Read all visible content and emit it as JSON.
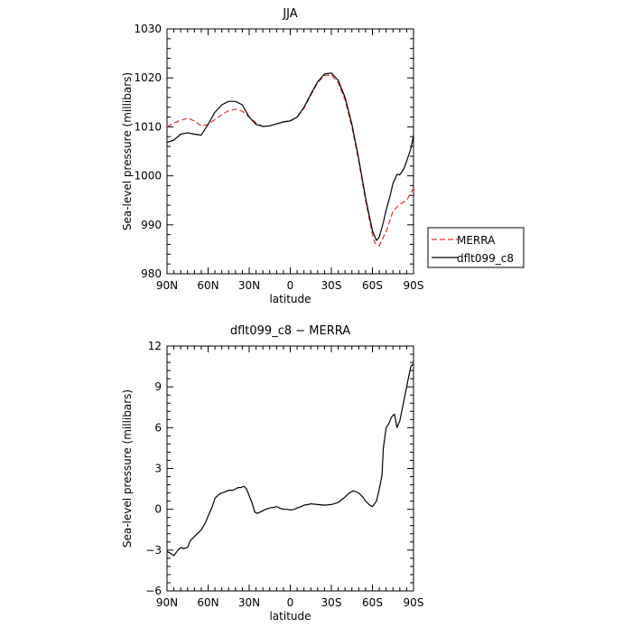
{
  "chart_data": [
    {
      "type": "line",
      "title": "JJA",
      "xlabel": "latitude",
      "ylabel": "Sea-level pressure (millibars)",
      "xticks": [
        "90N",
        "60N",
        "30N",
        "0",
        "30S",
        "60S",
        "90S"
      ],
      "xtick_values": [
        90,
        60,
        30,
        0,
        -30,
        -60,
        -90
      ],
      "xlim": [
        90,
        -90
      ],
      "ylim": [
        980,
        1030
      ],
      "yticks": [
        980,
        990,
        1000,
        1010,
        1020,
        1030
      ],
      "legend": "right",
      "series": [
        {
          "name": "MERRA",
          "color": "#e8322d",
          "dash": true,
          "x": [
            90,
            85,
            80,
            75,
            70,
            65,
            60,
            55,
            50,
            45,
            40,
            35,
            30,
            25,
            20,
            15,
            10,
            5,
            0,
            -5,
            -10,
            -15,
            -20,
            -25,
            -30,
            -35,
            -40,
            -45,
            -50,
            -55,
            -60,
            -62,
            -65,
            -68,
            -70,
            -75,
            -80,
            -85,
            -90
          ],
          "y": [
            1010,
            1010.8,
            1011.3,
            1011.8,
            1011.2,
            1010.2,
            1010.5,
            1011.5,
            1012.5,
            1013.3,
            1013.6,
            1013.2,
            1012,
            1010.8,
            1010.1,
            1010.2,
            1010.6,
            1011,
            1011.3,
            1012,
            1013.8,
            1016.5,
            1019,
            1020.5,
            1020.6,
            1019,
            1015.5,
            1010,
            1003,
            995,
            988,
            986.2,
            985.7,
            987.5,
            988.6,
            992.8,
            994.2,
            995,
            997.5
          ]
        },
        {
          "name": "dflt099_c8",
          "color": "#000000",
          "dash": false,
          "x": [
            90,
            85,
            80,
            75,
            70,
            65,
            60,
            55,
            50,
            45,
            40,
            35,
            30,
            25,
            20,
            15,
            10,
            5,
            0,
            -5,
            -10,
            -15,
            -20,
            -25,
            -30,
            -35,
            -40,
            -45,
            -50,
            -55,
            -60,
            -63,
            -65,
            -68,
            -70,
            -73,
            -75,
            -78,
            -80,
            -83,
            -85,
            -88,
            -90
          ],
          "y": [
            1006.8,
            1007.3,
            1008.5,
            1008.8,
            1008.5,
            1008.3,
            1010.5,
            1013,
            1014.5,
            1015.2,
            1015.2,
            1014.5,
            1012,
            1010.5,
            1010.1,
            1010.2,
            1010.6,
            1011,
            1011.2,
            1012,
            1014,
            1016.7,
            1019.2,
            1020.8,
            1021,
            1019.5,
            1016,
            1010.5,
            1003.5,
            995.5,
            988.8,
            986.8,
            987.5,
            990.5,
            993,
            996,
            998.5,
            1000.3,
            1000.2,
            1001.5,
            1003,
            1005.5,
            1008.2
          ]
        }
      ]
    },
    {
      "type": "line",
      "title": "dflt099_c8 − MERRA",
      "xlabel": "latitude",
      "ylabel": "Sea-level pressure (millibars)",
      "xticks": [
        "90N",
        "60N",
        "30N",
        "0",
        "30S",
        "60S",
        "90S"
      ],
      "xtick_values": [
        90,
        60,
        30,
        0,
        -30,
        -60,
        -90
      ],
      "xlim": [
        90,
        -90
      ],
      "ylim": [
        -6,
        12
      ],
      "yticks": [
        -6,
        -3,
        0,
        3,
        6,
        9,
        12
      ],
      "series": [
        {
          "color": "#000000",
          "dash": false,
          "x": [
            90,
            88,
            85,
            82,
            80,
            78,
            75,
            73,
            70,
            68,
            65,
            62,
            60,
            57,
            55,
            52,
            50,
            47,
            45,
            42,
            40,
            38,
            36,
            34,
            32,
            30,
            28,
            26,
            24,
            22,
            20,
            18,
            15,
            12,
            10,
            8,
            5,
            2,
            0,
            -3,
            -5,
            -8,
            -10,
            -13,
            -15,
            -20,
            -25,
            -30,
            -35,
            -40,
            -43,
            -46,
            -48,
            -50,
            -53,
            -55,
            -58,
            -60,
            -63,
            -65,
            -67,
            -68,
            -70,
            -72,
            -74,
            -76,
            -77,
            -78,
            -80,
            -82,
            -84,
            -86,
            -88,
            -90
          ],
          "y": [
            -3.1,
            -3.2,
            -3.4,
            -3,
            -2.8,
            -2.9,
            -2.8,
            -2.3,
            -2,
            -1.8,
            -1.5,
            -1,
            -0.5,
            0.2,
            0.8,
            1.1,
            1.2,
            1.3,
            1.4,
            1.4,
            1.5,
            1.6,
            1.6,
            1.7,
            1.5,
            1,
            0.5,
            -0.2,
            -0.3,
            -0.2,
            -0.1,
            0,
            0.1,
            0.15,
            0.2,
            0.1,
            0,
            0,
            -0.05,
            0,
            0.1,
            0.2,
            0.3,
            0.35,
            0.4,
            0.35,
            0.3,
            0.35,
            0.5,
            0.9,
            1.2,
            1.35,
            1.3,
            1.2,
            0.9,
            0.6,
            0.3,
            0.2,
            0.6,
            1.5,
            2.5,
            4.5,
            6,
            6.3,
            6.8,
            7,
            6.5,
            6,
            6.5,
            7.5,
            8.5,
            9.5,
            10.5,
            10.7
          ]
        }
      ]
    }
  ]
}
